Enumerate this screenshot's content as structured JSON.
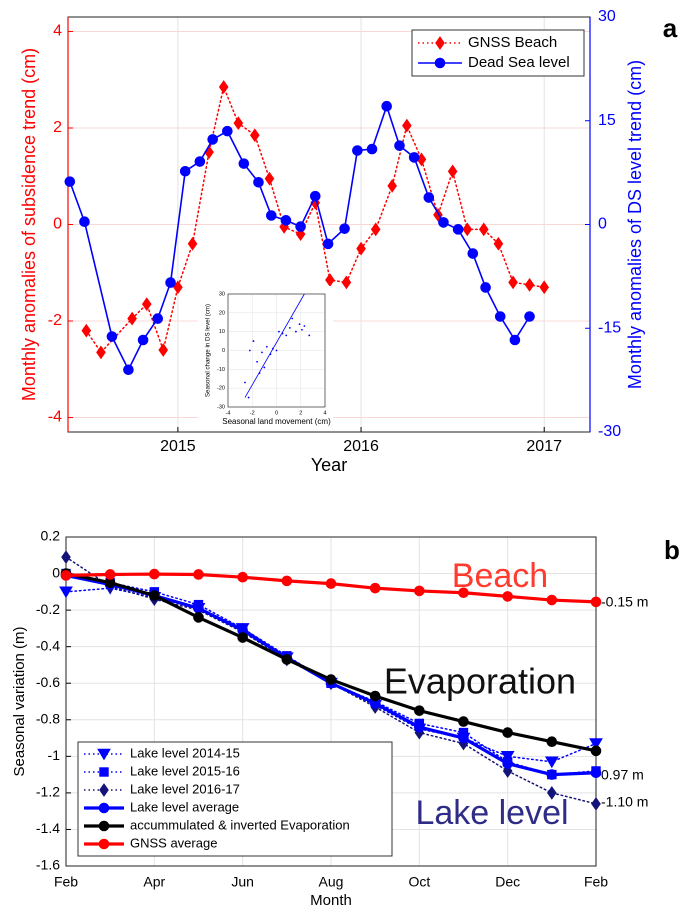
{
  "chart_data": [
    {
      "type": "line",
      "panel_label": "a",
      "xlabel": "Year",
      "ylabel": "Monthly anomalies of subsidence trend (cm)",
      "y2label": "Monthly anomalies of DS level trend (cm)",
      "ycolor": "#ff0000",
      "y2color": "#0000ff",
      "xlim": [
        2014.4,
        2017.25
      ],
      "xticks": [
        2015,
        2016,
        2017
      ],
      "ylim": [
        -4.3,
        4.3
      ],
      "yticks": [
        4,
        2,
        0,
        -2,
        -4
      ],
      "y2lim": [
        -30,
        30
      ],
      "y2ticks": [
        30,
        15,
        0,
        -15,
        -30
      ],
      "grid": true,
      "legend": "upper right",
      "series": [
        {
          "name": "GNSS Beach",
          "color": "#ff0000",
          "marker": "diamond",
          "linestyle": "dotted",
          "x": [
            2014.5,
            2014.58,
            2014.75,
            2014.83,
            2014.92,
            2015.0,
            2015.08,
            2015.17,
            2015.25,
            2015.33,
            2015.42,
            2015.5,
            2015.58,
            2015.67,
            2015.75,
            2015.83,
            2015.92,
            2016.0,
            2016.08,
            2016.17,
            2016.25,
            2016.33,
            2016.42,
            2016.5,
            2016.58,
            2016.67,
            2016.75,
            2016.83,
            2016.92,
            2017.0
          ],
          "values": [
            -2.2,
            -2.65,
            -1.95,
            -1.65,
            -2.6,
            -1.3,
            -0.4,
            1.5,
            2.85,
            2.1,
            1.85,
            0.95,
            -0.05,
            -0.2,
            0.45,
            -1.15,
            -1.2,
            -0.5,
            -0.1,
            0.8,
            2.05,
            1.35,
            0.2,
            1.1,
            -0.1,
            -0.1,
            -0.4,
            -1.2,
            -1.25,
            -1.3
          ]
        },
        {
          "name": "Dead Sea level",
          "color": "#0000ff",
          "marker": "circle",
          "linestyle": "solid",
          "axis": "y2",
          "x": [
            2014.41,
            2014.49,
            2014.64,
            2014.73,
            2014.81,
            2014.89,
            2014.96,
            2015.04,
            2015.12,
            2015.19,
            2015.27,
            2015.36,
            2015.44,
            2015.51,
            2015.59,
            2015.67,
            2015.75,
            2015.82,
            2015.91,
            2015.98,
            2016.06,
            2016.14,
            2016.21,
            2016.29,
            2016.37,
            2016.45,
            2016.53,
            2016.61,
            2016.68,
            2016.76,
            2016.84,
            2016.92
          ],
          "values": [
            6.2,
            0.4,
            -16.2,
            -21,
            -16.7,
            -13.6,
            -8.4,
            7.7,
            9.1,
            12.3,
            13.5,
            8.8,
            6.1,
            1.3,
            0.6,
            -0.3,
            4.1,
            -2.8,
            -0.6,
            10.7,
            10.9,
            17.1,
            11.4,
            9.7,
            3.9,
            0.3,
            -0.7,
            -4.2,
            -9.1,
            -13.3,
            -16.7,
            -13.3
          ]
        }
      ]
    },
    {
      "type": "scatter",
      "xlabel": "Seasonal land movement (cm)",
      "ylabel": "Seasonal change in DS level (cm)",
      "xlim": [
        -4,
        4
      ],
      "xticks": [
        -4,
        -2,
        0,
        2,
        4
      ],
      "ylim": [
        -30,
        30
      ],
      "yticks": [
        30,
        20,
        10,
        0,
        -10,
        -20,
        -30
      ],
      "grid": true,
      "color": "#0000ff",
      "x": [
        -2.6,
        -2.3,
        -2.2,
        -1.9,
        -1.6,
        -1.4,
        -1.2,
        -1.0,
        -0.8,
        -0.5,
        -0.3,
        0.0,
        0.2,
        0.5,
        0.8,
        1.1,
        1.3,
        1.6,
        1.9,
        2.1,
        2.3,
        2.7
      ],
      "values": [
        -17,
        -25,
        0,
        5,
        -6,
        -12,
        -1,
        -9,
        2,
        -2,
        1,
        0,
        10,
        9,
        8,
        12,
        17,
        10,
        14,
        11,
        13,
        8
      ],
      "fit": {
        "x": [
          -2.6,
          2.3
        ],
        "y": [
          -25,
          30
        ]
      }
    },
    {
      "type": "line",
      "panel_label": "b",
      "xlabel": "Month",
      "ylabel": "Seasonal variation (m)",
      "categories": [
        "Feb",
        null,
        "Apr",
        null,
        "Jun",
        null,
        "Aug",
        null,
        "Oct",
        null,
        "Dec",
        null,
        "Feb"
      ],
      "ylim": [
        -1.6,
        0.2
      ],
      "yticks": [
        0.2,
        0,
        -0.2,
        -0.4,
        -0.6,
        -0.8,
        -1,
        -1.2,
        -1.4,
        -1.6
      ],
      "grid": true,
      "legend": "lower left",
      "series": [
        {
          "name": "Lake level 2014-15",
          "color": "#0000ff",
          "marker": "triangle-down",
          "linestyle": "dotted",
          "values": [
            -0.1,
            -0.08,
            -0.13,
            -0.19,
            -0.3,
            -0.46,
            -0.6,
            -0.72,
            -0.85,
            -0.9,
            -1.0,
            -1.03,
            -0.93
          ]
        },
        {
          "name": "Lake level 2015-16",
          "color": "#0000ff",
          "marker": "square",
          "linestyle": "dotted",
          "values": [
            0,
            -0.05,
            -0.1,
            -0.17,
            -0.3,
            -0.45,
            -0.6,
            -0.7,
            -0.82,
            -0.87,
            -1.03,
            -1.1,
            -1.08
          ]
        },
        {
          "name": "Lake level 2016-17",
          "color": "#141478",
          "marker": "diamond",
          "linestyle": "dotted",
          "values": [
            0.09,
            -0.07,
            -0.14,
            -0.2,
            -0.32,
            -0.47,
            -0.6,
            -0.73,
            -0.87,
            -0.93,
            -1.08,
            -1.2,
            -1.26
          ]
        },
        {
          "name": "Lake level average",
          "color": "#0000ff",
          "marker": "circle",
          "linestyle": "solid",
          "values": [
            -0.01,
            -0.06,
            -0.12,
            -0.19,
            -0.31,
            -0.46,
            -0.6,
            -0.71,
            -0.84,
            -0.9,
            -1.04,
            -1.1,
            -1.09
          ]
        },
        {
          "name": "accummulated & inverted Evaporation",
          "color": "#000000",
          "marker": "circle",
          "linestyle": "solid",
          "values": [
            0,
            -0.05,
            -0.12,
            -0.24,
            -0.35,
            -0.47,
            -0.58,
            -0.67,
            -0.75,
            -0.81,
            -0.87,
            -0.92,
            -0.97
          ]
        },
        {
          "name": "GNSS average",
          "color": "#ff0000",
          "marker": "circle",
          "linestyle": "solid",
          "values": [
            -0.01,
            -0.005,
            -0.003,
            -0.005,
            -0.02,
            -0.04,
            -0.055,
            -0.08,
            -0.095,
            -0.105,
            -0.125,
            -0.145,
            -0.155
          ]
        }
      ],
      "annotations": [
        {
          "text": "Beach",
          "color": "#ff3b2f"
        },
        {
          "text": "Evaporation",
          "color": "#111111"
        },
        {
          "text": "Lake level",
          "color": "#2e2c86"
        },
        {
          "text": "-0.15 m",
          "color": "#000000"
        },
        {
          "text": "0.97 m",
          "color": "#000000"
        },
        {
          "text": "-1.10 m",
          "color": "#000000"
        }
      ]
    }
  ]
}
